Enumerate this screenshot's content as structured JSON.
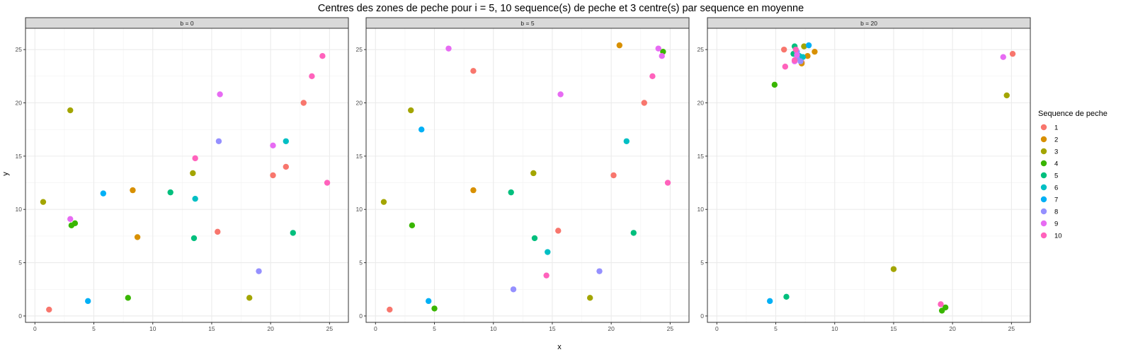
{
  "chart_data": {
    "type": "scatter",
    "title": "Centres des zones de peche pour i = 5, 10 sequence(s) de peche et 3 centre(s) par sequence en moyenne",
    "xlabel": "x",
    "ylabel": "y",
    "xlim": [
      -0.8,
      26.6
    ],
    "ylim": [
      -0.6,
      27.0
    ],
    "xticks": [
      0,
      5,
      10,
      15,
      20,
      25
    ],
    "yticks": [
      0,
      5,
      10,
      15,
      20,
      25
    ],
    "grid": true,
    "legend": {
      "title": "Sequence de peche",
      "placement": "right",
      "entries": [
        {
          "label": "1",
          "color": "#F8766D"
        },
        {
          "label": "2",
          "color": "#D89000"
        },
        {
          "label": "3",
          "color": "#A3A500"
        },
        {
          "label": "4",
          "color": "#39B600"
        },
        {
          "label": "5",
          "color": "#00BF7D"
        },
        {
          "label": "6",
          "color": "#00BFC4"
        },
        {
          "label": "7",
          "color": "#00B0F6"
        },
        {
          "label": "8",
          "color": "#9590FF"
        },
        {
          "label": "9",
          "color": "#E76BF3"
        },
        {
          "label": "10",
          "color": "#FF62BC"
        }
      ]
    },
    "panels": [
      {
        "strip": "b = 0",
        "points": [
          {
            "x": 1.2,
            "y": 0.6,
            "seq": "1"
          },
          {
            "x": 15.5,
            "y": 7.9,
            "seq": "1"
          },
          {
            "x": 20.2,
            "y": 13.2,
            "seq": "1"
          },
          {
            "x": 21.3,
            "y": 14.0,
            "seq": "1"
          },
          {
            "x": 22.8,
            "y": 20.0,
            "seq": "1"
          },
          {
            "x": 8.3,
            "y": 11.8,
            "seq": "2"
          },
          {
            "x": 8.7,
            "y": 7.4,
            "seq": "2"
          },
          {
            "x": 0.7,
            "y": 10.7,
            "seq": "3"
          },
          {
            "x": 3.0,
            "y": 19.3,
            "seq": "3"
          },
          {
            "x": 13.4,
            "y": 13.4,
            "seq": "3"
          },
          {
            "x": 18.2,
            "y": 1.7,
            "seq": "3"
          },
          {
            "x": 3.1,
            "y": 8.5,
            "seq": "4"
          },
          {
            "x": 3.4,
            "y": 8.7,
            "seq": "4"
          },
          {
            "x": 7.9,
            "y": 1.7,
            "seq": "4"
          },
          {
            "x": 11.5,
            "y": 11.6,
            "seq": "5"
          },
          {
            "x": 13.5,
            "y": 7.3,
            "seq": "5"
          },
          {
            "x": 21.9,
            "y": 7.8,
            "seq": "5"
          },
          {
            "x": 13.6,
            "y": 11.0,
            "seq": "6"
          },
          {
            "x": 21.3,
            "y": 16.4,
            "seq": "6"
          },
          {
            "x": 4.5,
            "y": 1.4,
            "seq": "7"
          },
          {
            "x": 5.8,
            "y": 11.5,
            "seq": "7"
          },
          {
            "x": 15.6,
            "y": 16.4,
            "seq": "8"
          },
          {
            "x": 19.0,
            "y": 4.2,
            "seq": "8"
          },
          {
            "x": 3.0,
            "y": 9.1,
            "seq": "9"
          },
          {
            "x": 15.7,
            "y": 20.8,
            "seq": "9"
          },
          {
            "x": 20.2,
            "y": 16.0,
            "seq": "9"
          },
          {
            "x": 13.6,
            "y": 14.8,
            "seq": "10"
          },
          {
            "x": 23.5,
            "y": 22.5,
            "seq": "10"
          },
          {
            "x": 24.4,
            "y": 24.4,
            "seq": "10"
          },
          {
            "x": 24.8,
            "y": 12.5,
            "seq": "10"
          }
        ]
      },
      {
        "strip": "b = 5",
        "points": [
          {
            "x": 1.2,
            "y": 0.6,
            "seq": "1"
          },
          {
            "x": 8.3,
            "y": 23.0,
            "seq": "1"
          },
          {
            "x": 15.5,
            "y": 8.0,
            "seq": "1"
          },
          {
            "x": 20.2,
            "y": 13.2,
            "seq": "1"
          },
          {
            "x": 22.8,
            "y": 20.0,
            "seq": "1"
          },
          {
            "x": 8.3,
            "y": 11.8,
            "seq": "2"
          },
          {
            "x": 20.7,
            "y": 25.4,
            "seq": "2"
          },
          {
            "x": 0.7,
            "y": 10.7,
            "seq": "3"
          },
          {
            "x": 3.0,
            "y": 19.3,
            "seq": "3"
          },
          {
            "x": 13.4,
            "y": 13.4,
            "seq": "3"
          },
          {
            "x": 18.2,
            "y": 1.7,
            "seq": "3"
          },
          {
            "x": 3.1,
            "y": 8.5,
            "seq": "4"
          },
          {
            "x": 5.0,
            "y": 0.7,
            "seq": "4"
          },
          {
            "x": 24.4,
            "y": 24.8,
            "seq": "4"
          },
          {
            "x": 11.5,
            "y": 11.6,
            "seq": "5"
          },
          {
            "x": 13.5,
            "y": 7.3,
            "seq": "5"
          },
          {
            "x": 21.9,
            "y": 7.8,
            "seq": "5"
          },
          {
            "x": 14.6,
            "y": 6.0,
            "seq": "6"
          },
          {
            "x": 21.3,
            "y": 16.4,
            "seq": "6"
          },
          {
            "x": 3.9,
            "y": 17.5,
            "seq": "7"
          },
          {
            "x": 4.5,
            "y": 1.4,
            "seq": "7"
          },
          {
            "x": 11.7,
            "y": 2.5,
            "seq": "8"
          },
          {
            "x": 19.0,
            "y": 4.2,
            "seq": "8"
          },
          {
            "x": 6.2,
            "y": 25.1,
            "seq": "9"
          },
          {
            "x": 15.7,
            "y": 20.8,
            "seq": "9"
          },
          {
            "x": 24.0,
            "y": 25.1,
            "seq": "9"
          },
          {
            "x": 24.3,
            "y": 24.4,
            "seq": "9"
          },
          {
            "x": 14.5,
            "y": 3.8,
            "seq": "10"
          },
          {
            "x": 23.5,
            "y": 22.5,
            "seq": "10"
          },
          {
            "x": 24.8,
            "y": 12.5,
            "seq": "10"
          }
        ]
      },
      {
        "strip": "b = 20",
        "points": [
          {
            "x": 5.7,
            "y": 25.0,
            "seq": "1"
          },
          {
            "x": 7.2,
            "y": 23.8,
            "seq": "1"
          },
          {
            "x": 25.1,
            "y": 24.6,
            "seq": "1"
          },
          {
            "x": 7.2,
            "y": 23.7,
            "seq": "2"
          },
          {
            "x": 7.7,
            "y": 24.4,
            "seq": "2"
          },
          {
            "x": 8.3,
            "y": 24.8,
            "seq": "2"
          },
          {
            "x": 7.4,
            "y": 25.3,
            "seq": "3"
          },
          {
            "x": 15.0,
            "y": 4.4,
            "seq": "3"
          },
          {
            "x": 24.6,
            "y": 20.7,
            "seq": "3"
          },
          {
            "x": 4.9,
            "y": 21.7,
            "seq": "4"
          },
          {
            "x": 19.1,
            "y": 0.5,
            "seq": "4"
          },
          {
            "x": 19.4,
            "y": 0.8,
            "seq": "4"
          },
          {
            "x": 5.9,
            "y": 1.8,
            "seq": "5"
          },
          {
            "x": 6.5,
            "y": 24.6,
            "seq": "5"
          },
          {
            "x": 6.6,
            "y": 25.3,
            "seq": "5"
          },
          {
            "x": 7.0,
            "y": 24.4,
            "seq": "6"
          },
          {
            "x": 7.3,
            "y": 24.3,
            "seq": "6"
          },
          {
            "x": 4.5,
            "y": 1.4,
            "seq": "7"
          },
          {
            "x": 7.8,
            "y": 25.4,
            "seq": "7"
          },
          {
            "x": 6.8,
            "y": 24.2,
            "seq": "8"
          },
          {
            "x": 6.8,
            "y": 24.8,
            "seq": "8"
          },
          {
            "x": 7.1,
            "y": 23.9,
            "seq": "8"
          },
          {
            "x": 6.6,
            "y": 23.9,
            "seq": "9"
          },
          {
            "x": 6.8,
            "y": 24.5,
            "seq": "9"
          },
          {
            "x": 24.3,
            "y": 24.3,
            "seq": "9"
          },
          {
            "x": 5.8,
            "y": 23.4,
            "seq": "10"
          },
          {
            "x": 6.6,
            "y": 24.0,
            "seq": "10"
          },
          {
            "x": 6.7,
            "y": 25.0,
            "seq": "10"
          },
          {
            "x": 19.0,
            "y": 1.1,
            "seq": "10"
          }
        ]
      }
    ]
  }
}
